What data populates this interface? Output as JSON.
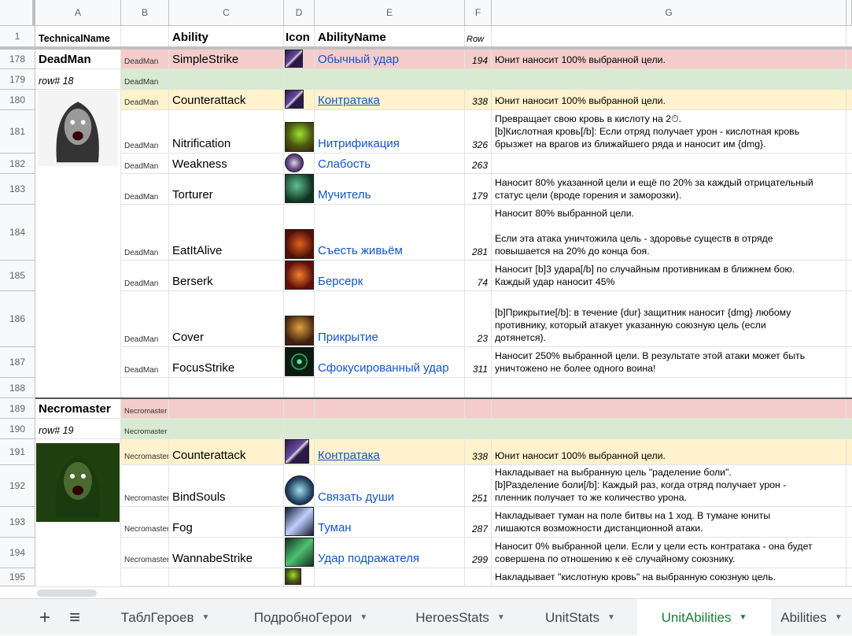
{
  "columns": [
    "A",
    "B",
    "C",
    "D",
    "E",
    "F",
    "G"
  ],
  "header_row": {
    "num": "1",
    "technical_name": "TechnicalName",
    "ability": "Ability",
    "icon": "Icon",
    "ability_name": "AbilityName",
    "row": "Row"
  },
  "groups": [
    {
      "name": "DeadMan",
      "row_note": "row# 18",
      "portrait": "zombie-portrait"
    },
    {
      "name": "Necromaster",
      "row_note": "row# 19",
      "portrait": "necromancer-portrait"
    }
  ],
  "rows": [
    {
      "num": "178",
      "a": "DeadMan",
      "b": "DeadMan",
      "c": "SimpleStrike",
      "e": "Обычный удар",
      "f": "194",
      "g": "Юнит наносит 100% выбранной цели.",
      "fill": "#f4cccc",
      "icon": "sword-icon"
    },
    {
      "num": "179",
      "a": "row# 18",
      "b": "DeadMan",
      "c": "",
      "e": "",
      "f": "",
      "g": "",
      "fill": "#d9ead3"
    },
    {
      "num": "180",
      "b": "DeadMan",
      "c": "Counterattack",
      "e": "Контратака",
      "link": true,
      "f": "338",
      "g": "Юнит наносит 100% выбранной цели.",
      "fill": "#fff2cc",
      "icon": "sword-icon"
    },
    {
      "num": "181",
      "b": "DeadMan",
      "c": "Nitrification",
      "e": "Нитрификация",
      "f": "326",
      "g": "Превращает свою кровь в кислоту на 2⏱.\n[b]Кислотная кровь[/b]: Если отряд получает урон - кислотная кровь\nбрызжет на врагов из ближайшего ряда и наносит им {dmg}.",
      "icon": "acid-icon"
    },
    {
      "num": "182",
      "b": "DeadMan",
      "c": "Weakness",
      "e": "Слабость",
      "f": "263",
      "g": "",
      "icon": "weakness-icon"
    },
    {
      "num": "183",
      "b": "DeadMan",
      "c": "Torturer",
      "e": "Мучитель",
      "f": "179",
      "g": "Наносит 80% указанной цели и ещё по 20% за каждый отрицательный\nстатус цели (вроде горения и заморозки).",
      "icon": "torturer-icon"
    },
    {
      "num": "184",
      "b": "DeadMan",
      "c": "EatItAlive",
      "e": "Съесть живьём",
      "f": "281",
      "g": "Наносит 80% выбранной цели.\n\nЕсли эта атака уничтожила цель - здоровье существ в отряде\nповышается на 20% до конца боя.",
      "icon": "eat-alive-icon"
    },
    {
      "num": "185",
      "b": "DeadMan",
      "c": "Berserk",
      "e": "Берсерк",
      "f": "74",
      "g": "Наносит [b]3 удара[/b] по случайным противникам в ближнем бою.\nКаждый удар наносит 45%",
      "icon": "berserk-icon"
    },
    {
      "num": "186",
      "b": "DeadMan",
      "c": "Cover",
      "e": "Прикрытие",
      "f": "23",
      "g": "[b]Прикрытие[/b]: в течение {dur} защитник наносит {dmg} любому\nпротивнику, который атакует указанную союзную цель (если\nдотянется).",
      "icon": "cover-icon"
    },
    {
      "num": "187",
      "b": "DeadMan",
      "c": "FocusStrike",
      "e": "Сфокусированный удар",
      "f": "311",
      "g": "Наносит 250% выбранной цели. В результате этой атаки может быть\nуничтожено не более одного воина!",
      "icon": "crosshair-icon"
    },
    {
      "num": "188",
      "b": "",
      "c": "",
      "e": "",
      "f": "",
      "g": ""
    },
    {
      "num": "189",
      "a": "Necromaster",
      "b": "Necromaster",
      "c": "",
      "e": "",
      "f": "",
      "g": "",
      "fill": "#f4cccc"
    },
    {
      "num": "190",
      "a": "row# 19",
      "b": "Necromaster",
      "c": "",
      "e": "",
      "f": "",
      "g": "",
      "fill": "#d9ead3"
    },
    {
      "num": "191",
      "b": "Necromaster",
      "c": "Counterattack",
      "e": "Контратака",
      "link": true,
      "f": "338",
      "g": "Юнит наносит 100% выбранной цели.",
      "fill": "#fff2cc",
      "icon": "sword-icon"
    },
    {
      "num": "192",
      "b": "Necromaster",
      "c": "BindSouls",
      "e": "Связать души",
      "f": "251",
      "g": "Накладывает на выбранную цель \"раделение боли\".\n[b]Разделение боли[/b]: Каждый раз, когда отряд получает урон -\nпленник получает то же количество урона.",
      "icon": "bind-souls-icon"
    },
    {
      "num": "193",
      "b": "Necromaster",
      "c": "Fog",
      "e": "Туман",
      "f": "287",
      "g": "Накладывает туман на поле битвы на 1 ход. В тумане юниты\nлишаются возможности дистанционной атаки.",
      "icon": "fog-icon"
    },
    {
      "num": "194",
      "b": "Necromaster",
      "c": "WannabeStrike",
      "e": "Удар подражателя",
      "f": "299",
      "g": "Наносит 0% выбранной цели. Если у цели есть контратака - она будет\nсовершена по отношению к её случайному союзнику.",
      "icon": "wannabe-icon"
    },
    {
      "num": "195",
      "b": "",
      "c": "",
      "e": "",
      "f": "",
      "g": "Накладывает \"кислотную кровь\" на выбранную союзную цель.",
      "icon": "acid-icon"
    }
  ],
  "sheet_tabs": [
    {
      "label": "ТаблГероев"
    },
    {
      "label": "ПодробноГерои"
    },
    {
      "label": "HeroesStats"
    },
    {
      "label": "UnitStats"
    },
    {
      "label": "UnitAbilities",
      "active": true
    },
    {
      "label": "Abilities"
    }
  ],
  "toolbar": {
    "add": "+",
    "menu": "≡"
  },
  "colors": {
    "pink": "#f4cccc",
    "green": "#d9ead3",
    "yellow": "#fff2cc",
    "link": "#1155cc",
    "active_tab": "#188038"
  }
}
